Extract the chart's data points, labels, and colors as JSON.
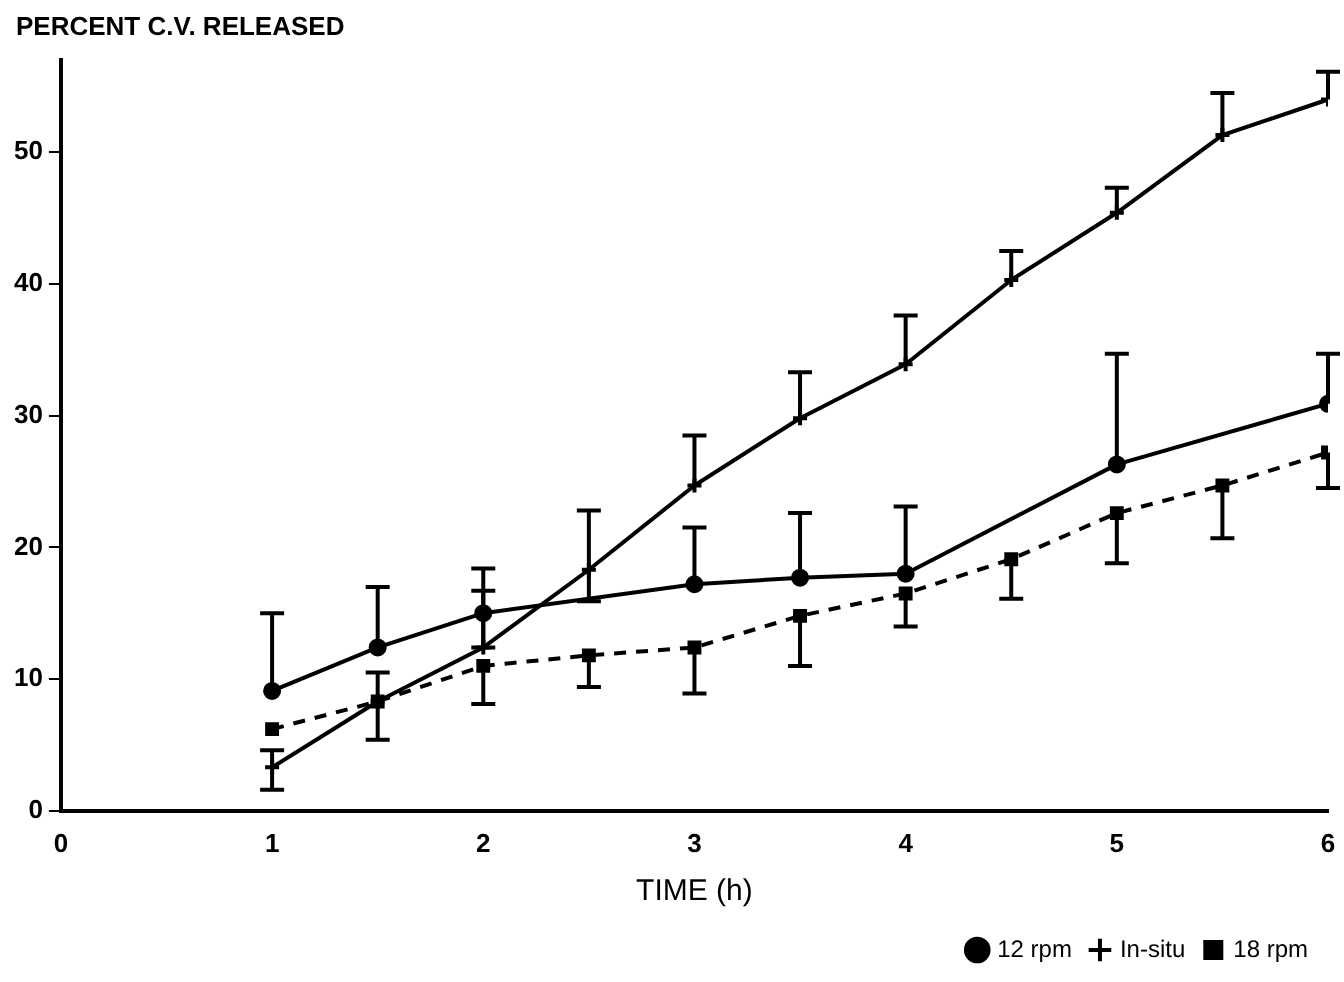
{
  "chart_data": {
    "type": "line",
    "ylabel": "PERCENT C.V. RELEASED",
    "xlabel": "TIME (h)",
    "x": [
      1,
      1.5,
      2,
      2.5,
      3,
      3.5,
      4,
      4.5,
      5,
      5.5,
      6
    ],
    "series": [
      {
        "name": "12 rpm",
        "color": "#000000",
        "marker": "circle",
        "line_style": "solid",
        "values": [
          9.1,
          12.4,
          15,
          null,
          17.2,
          17.7,
          18,
          null,
          26.3,
          null,
          30.9
        ],
        "errors": [
          [
            9.1,
            15
          ],
          [
            12.4,
            17
          ],
          [
            12.4,
            18.4
          ],
          null,
          [
            17.2,
            21.5
          ],
          [
            17.7,
            22.6
          ],
          [
            18,
            23.1
          ],
          null,
          [
            26.3,
            34.7
          ],
          null,
          [
            30.9,
            34.7
          ]
        ]
      },
      {
        "name": "In-situ",
        "color": "#000000",
        "marker": "cross",
        "line_style": "solid",
        "values": [
          3.3,
          8.3,
          12.4,
          18.3,
          24.7,
          29.8,
          33.9,
          40.3,
          45.4,
          51.3,
          54
        ],
        "errors": [
          [
            1.6,
            4.6
          ],
          null,
          [
            12.4,
            16.7
          ],
          [
            15.9,
            22.8
          ],
          [
            24.7,
            28.5
          ],
          [
            29.8,
            33.3
          ],
          [
            33.9,
            37.6
          ],
          [
            40.3,
            42.5
          ],
          [
            45.4,
            47.3
          ],
          [
            51.3,
            54.5
          ],
          [
            54,
            56.1
          ]
        ]
      },
      {
        "name": "18 rpm",
        "color": "#000000",
        "marker": "square",
        "line_style": "dashed",
        "values": [
          6.2,
          8.3,
          11,
          11.8,
          12.4,
          14.8,
          16.5,
          19.1,
          22.6,
          24.7,
          27.2
        ],
        "errors": [
          null,
          [
            5.4,
            10.5
          ],
          [
            8.1,
            11
          ],
          [
            9.4,
            11.8
          ],
          [
            8.9,
            12.4
          ],
          [
            11,
            14.8
          ],
          [
            14,
            16.5
          ],
          [
            16.1,
            19.1
          ],
          [
            18.8,
            22.6
          ],
          [
            20.7,
            24.7
          ],
          [
            24.5,
            27.2
          ]
        ]
      }
    ],
    "xlim": [
      0,
      6
    ],
    "xticks": [
      0,
      1,
      2,
      3,
      4,
      5,
      6
    ],
    "ylim": [
      0,
      57
    ],
    "yticks": [
      0,
      10,
      20,
      30,
      40,
      50
    ],
    "grid": false,
    "legend": "bottom right"
  }
}
